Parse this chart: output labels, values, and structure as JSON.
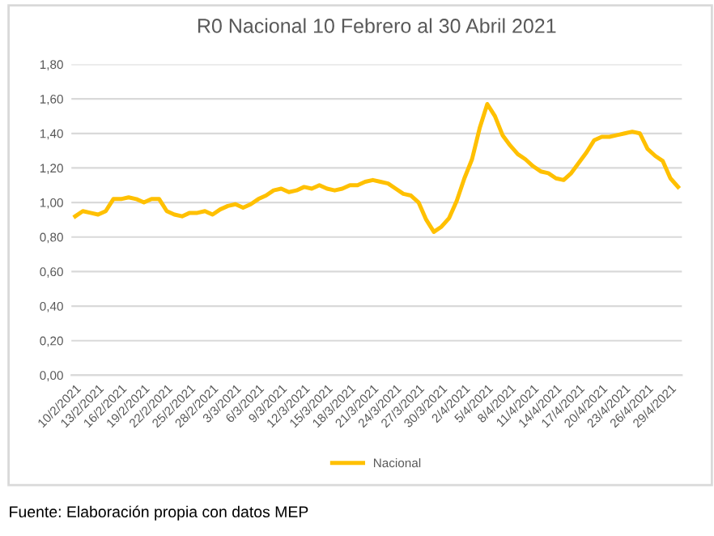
{
  "chart_data": {
    "type": "line",
    "title": "R0 Nacional 10 Febrero al 30 Abril 2021",
    "categories": [
      "10/2/2021",
      null,
      null,
      "13/2/2021",
      null,
      null,
      "16/2/2021",
      null,
      null,
      "19/2/2021",
      null,
      null,
      "22/2/2021",
      null,
      null,
      "25/2/2021",
      null,
      null,
      "28/2/2021",
      null,
      null,
      "3/3/2021",
      null,
      null,
      "6/3/2021",
      null,
      null,
      "9/3/2021",
      null,
      null,
      "12/3/2021",
      null,
      null,
      "15/3/2021",
      null,
      null,
      "18/3/2021",
      null,
      null,
      "21/3/2021",
      null,
      null,
      "24/3/2021",
      null,
      null,
      "27/3/2021",
      null,
      null,
      "30/3/2021",
      null,
      null,
      "2/4/2021",
      null,
      null,
      "5/4/2021",
      null,
      null,
      "8/4/2021",
      null,
      null,
      "11/4/2021",
      null,
      null,
      "14/4/2021",
      null,
      null,
      "17/4/2021",
      null,
      null,
      "20/4/2021",
      null,
      null,
      "23/4/2021",
      null,
      null,
      "26/4/2021",
      null,
      null,
      "29/4/2021",
      null
    ],
    "series": [
      {
        "name": "Nacional",
        "color": "#ffc000",
        "values": [
          0.92,
          0.95,
          0.94,
          0.93,
          0.95,
          1.02,
          1.02,
          1.03,
          1.02,
          1.0,
          1.02,
          1.02,
          0.95,
          0.93,
          0.92,
          0.94,
          0.94,
          0.95,
          0.93,
          0.96,
          0.98,
          0.99,
          0.97,
          0.99,
          1.02,
          1.04,
          1.07,
          1.08,
          1.06,
          1.07,
          1.09,
          1.08,
          1.1,
          1.08,
          1.07,
          1.08,
          1.1,
          1.1,
          1.12,
          1.13,
          1.12,
          1.11,
          1.08,
          1.05,
          1.04,
          1.0,
          0.9,
          0.83,
          0.86,
          0.91,
          1.01,
          1.14,
          1.25,
          1.43,
          1.57,
          1.5,
          1.39,
          1.33,
          1.28,
          1.25,
          1.21,
          1.18,
          1.17,
          1.14,
          1.13,
          1.17,
          1.23,
          1.29,
          1.36,
          1.38,
          1.38,
          1.39,
          1.4,
          1.41,
          1.4,
          1.31,
          1.27,
          1.24,
          1.14,
          1.09
        ]
      }
    ],
    "ylim": [
      0,
      1.8
    ],
    "yticks": [
      {
        "value": 0,
        "label": "0,00"
      },
      {
        "value": 0.2,
        "label": "0,20"
      },
      {
        "value": 0.4,
        "label": "0,40"
      },
      {
        "value": 0.6,
        "label": "0,60"
      },
      {
        "value": 0.8,
        "label": "0,80"
      },
      {
        "value": 1.0,
        "label": "1,00"
      },
      {
        "value": 1.2,
        "label": "1,20"
      },
      {
        "value": 1.4,
        "label": "1,40"
      },
      {
        "value": 1.6,
        "label": "1,60"
      },
      {
        "value": 1.8,
        "label": "1,80"
      }
    ],
    "grid": "y",
    "legend": "bottom",
    "marker": "none",
    "line_style": "solid",
    "annotations": [
      "Fuente: Elaboración propia con datos MEP"
    ]
  }
}
